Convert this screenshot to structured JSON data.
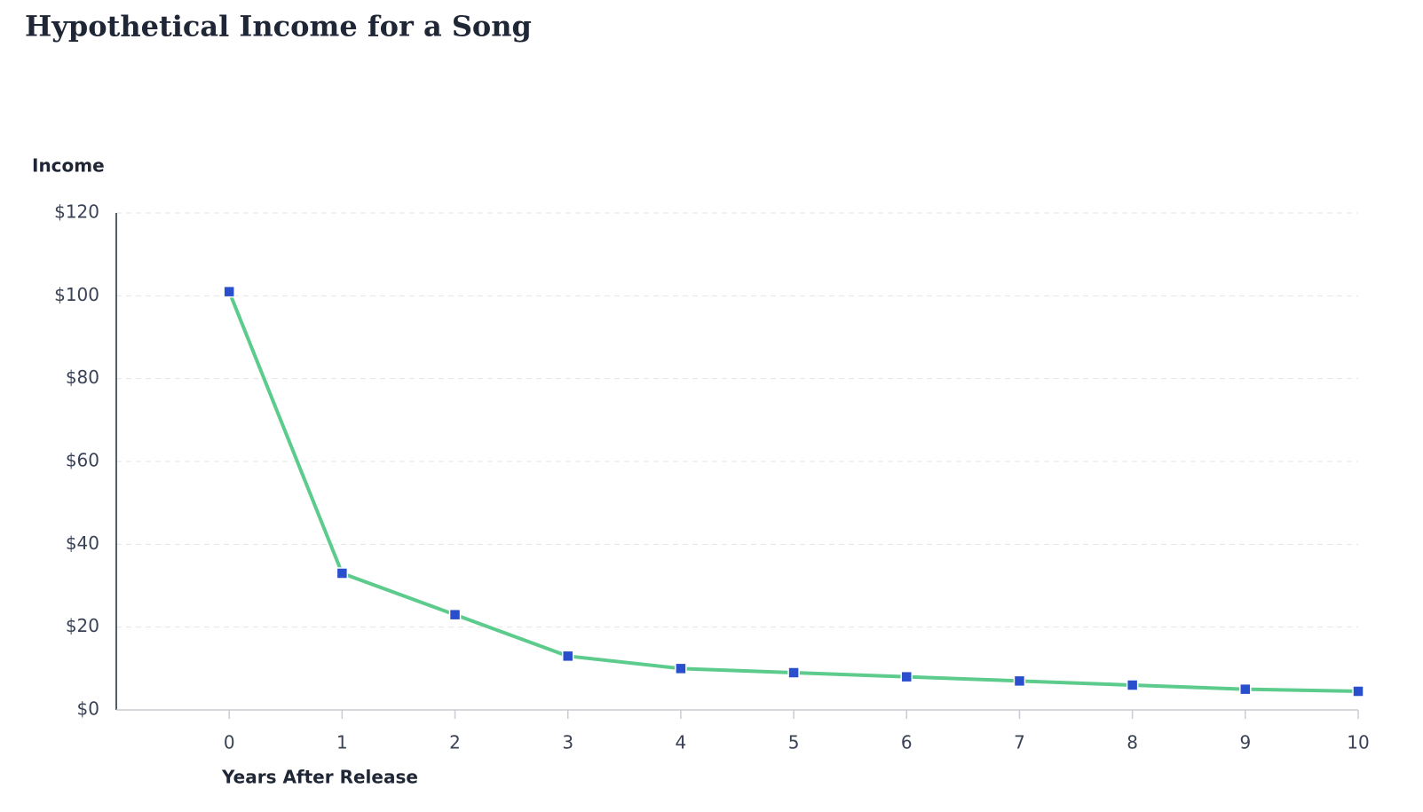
{
  "chart_data": {
    "type": "line",
    "title": "Hypothetical Income for a Song",
    "y_label": "Income",
    "x_label": "Years After Release",
    "x": [
      0,
      1,
      2,
      3,
      4,
      5,
      6,
      7,
      8,
      9,
      10
    ],
    "series": [
      {
        "name": "Income",
        "color": "#5ccb8c",
        "marker_color": "#2a4fcc",
        "values": [
          101,
          33,
          23,
          13,
          10,
          9,
          8,
          7,
          6,
          5,
          4.5
        ]
      }
    ],
    "xlim": [
      -1,
      10
    ],
    "xticks": [
      0,
      1,
      2,
      3,
      4,
      5,
      6,
      7,
      8,
      9,
      10
    ],
    "ylim": [
      0,
      120
    ],
    "yticks": [
      {
        "value": 0,
        "label": "$0"
      },
      {
        "value": 20,
        "label": "$20"
      },
      {
        "value": 40,
        "label": "$40"
      },
      {
        "value": 60,
        "label": "$60"
      },
      {
        "value": 80,
        "label": "$80"
      },
      {
        "value": 100,
        "label": "$100"
      },
      {
        "value": 120,
        "label": "$120"
      }
    ],
    "grid": true
  }
}
